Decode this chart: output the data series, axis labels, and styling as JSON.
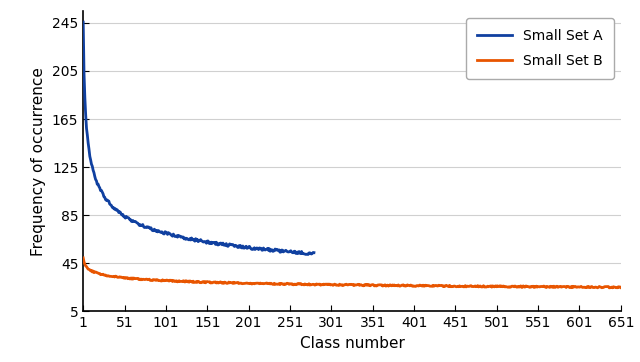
{
  "title": "",
  "xlabel": "Class number",
  "ylabel": "Frequency of occurrence",
  "xlim": [
    1,
    651
  ],
  "ylim": [
    5,
    255
  ],
  "yticks": [
    5,
    45,
    85,
    125,
    165,
    205,
    245
  ],
  "xticks": [
    1,
    51,
    101,
    151,
    201,
    251,
    301,
    351,
    401,
    451,
    501,
    551,
    601,
    651
  ],
  "set_a_color": "#1040a0",
  "set_b_color": "#e85500",
  "set_a_label": "Small Set A",
  "set_b_label": "Small Set B",
  "set_a_n": 280,
  "set_a_start": 245,
  "set_a_end": 53,
  "set_b_n": 651,
  "set_b_start": 50,
  "set_b_end": 25,
  "linewidth": 2.0,
  "legend_loc": "upper right",
  "grid_color": "#d0d0d0",
  "background_color": "#ffffff"
}
